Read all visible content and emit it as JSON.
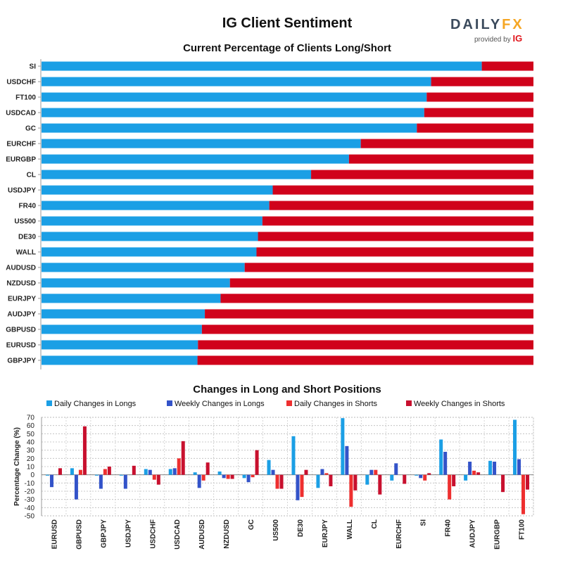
{
  "header": {
    "title": "IG Client Sentiment",
    "logo_main_a": "DAIL",
    "logo_main_b": "Y",
    "logo_main_c": "FX",
    "logo_sub": "provided by",
    "logo_ig": "IG"
  },
  "colors": {
    "long": "#1b9fe5",
    "short": "#d0021b",
    "weekly_long": "#3353c9",
    "daily_short": "#ee2f2f",
    "weekly_short": "#c8102e"
  },
  "chart_data": [
    {
      "type": "bar",
      "orientation": "horizontal",
      "stacked": true,
      "title": "Current Percentage of Clients Long/Short",
      "categories": [
        "SI",
        "USDCHF",
        "FT100",
        "USDCAD",
        "GC",
        "EURCHF",
        "EURGBP",
        "CL",
        "USDJPY",
        "FR40",
        "US500",
        "DE30",
        "WALL",
        "AUDUSD",
        "NZDUSD",
        "EURJPY",
        "AUDJPY",
        "GBPUSD",
        "EURUSD",
        "GBPJPY"
      ],
      "series": [
        {
          "values": [
            89.5,
            79.2,
            78.3,
            77.8,
            76.3,
            64.9,
            62.5,
            54.8,
            47.0,
            46.3,
            44.9,
            44.0,
            43.7,
            41.3,
            38.3,
            36.4,
            33.2,
            32.6,
            31.8,
            31.7
          ]
        },
        {
          "values": [
            10.5,
            20.8,
            21.7,
            22.2,
            23.7,
            35.1,
            37.5,
            45.2,
            53.0,
            53.7,
            55.1,
            56.0,
            56.3,
            58.7,
            61.7,
            63.6,
            66.8,
            67.4,
            68.2,
            68.3
          ]
        }
      ],
      "xlim": [
        0,
        100
      ]
    },
    {
      "type": "bar",
      "title": "Changes in Long and Short Positions",
      "ylabel": "Percentage Change (%)",
      "ylim": [
        -50,
        70
      ],
      "yticks": [
        70,
        60,
        50,
        40,
        30,
        20,
        10,
        0,
        -10,
        -20,
        -30,
        -40,
        -50
      ],
      "categories": [
        "EURUSD",
        "GBPUSD",
        "GBPJPY",
        "USDJPY",
        "USDCHF",
        "USDCAD",
        "AUDUSD",
        "NZDUSD",
        "GC",
        "US500",
        "DE30",
        "EURJPY",
        "WALL",
        "CL",
        "EURCHF",
        "SI",
        "FR40",
        "AUDJPY",
        "EURGBP",
        "FT100"
      ],
      "series": [
        {
          "name": "Daily Changes in Longs",
          "values": [
            -1,
            8,
            -1,
            -1,
            7,
            7,
            3,
            4,
            -4,
            18,
            47,
            -16,
            69,
            -12,
            -7,
            -1,
            43,
            -7,
            17,
            67
          ]
        },
        {
          "name": "Weekly Changes in Longs",
          "values": [
            -15,
            -30,
            -17,
            -17,
            6,
            8,
            -16,
            -4,
            -9,
            6,
            -31,
            7,
            35,
            6,
            14,
            -4,
            28,
            16,
            16,
            19
          ]
        },
        {
          "name": "Daily Changes in Shorts",
          "values": [
            0,
            6,
            7,
            0,
            -6,
            20,
            -7,
            -5,
            -3,
            -17,
            -27,
            2,
            -39,
            6,
            0,
            -7,
            -30,
            5,
            0,
            -48
          ]
        },
        {
          "name": "Weekly Changes in Shorts",
          "values": [
            8,
            59,
            10,
            11,
            -12,
            41,
            15,
            -5,
            30,
            -17,
            6,
            -14,
            -19,
            -24,
            -11,
            2,
            -14,
            3,
            -21,
            -18
          ]
        }
      ],
      "grid": true,
      "legend": "top"
    }
  ]
}
